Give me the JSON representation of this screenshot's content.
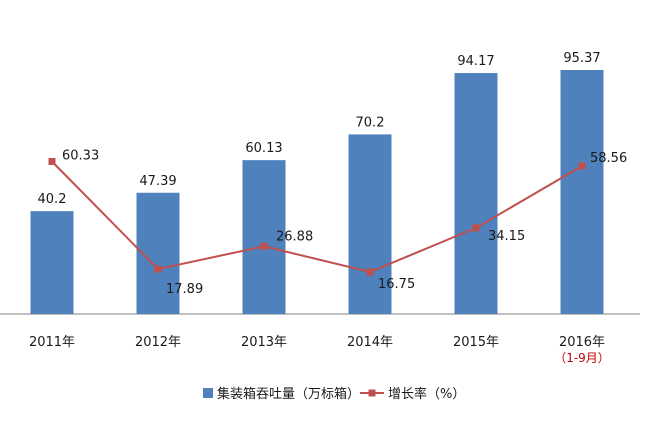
{
  "chart_data": {
    "type": "bar+line",
    "categories": [
      "2011年",
      "2012年",
      "2013年",
      "2014年",
      "2015年",
      "2016年"
    ],
    "category_notes": [
      "",
      "",
      "",
      "",
      "",
      "（1-9月）"
    ],
    "series": [
      {
        "name": "集装箱吞吐量（万标箱）",
        "type": "bar",
        "values": [
          40.2,
          47.39,
          60.13,
          70.2,
          94.17,
          95.37
        ],
        "labels": [
          "40.2",
          "47.39",
          "60.13",
          "70.2",
          "94.17",
          "95.37"
        ]
      },
      {
        "name": "增长率（%）",
        "type": "line",
        "values": [
          60.33,
          17.89,
          26.88,
          16.75,
          34.15,
          58.56
        ],
        "labels": [
          "60.33",
          "17.89",
          "26.88",
          "16.75",
          "34.15",
          "58.56"
        ]
      }
    ],
    "colors": {
      "bar": "#4f81bd",
      "line": "#c0504d",
      "note": "#c00000",
      "axis": "#808080"
    },
    "grid": false,
    "legend_position": "bottom"
  }
}
